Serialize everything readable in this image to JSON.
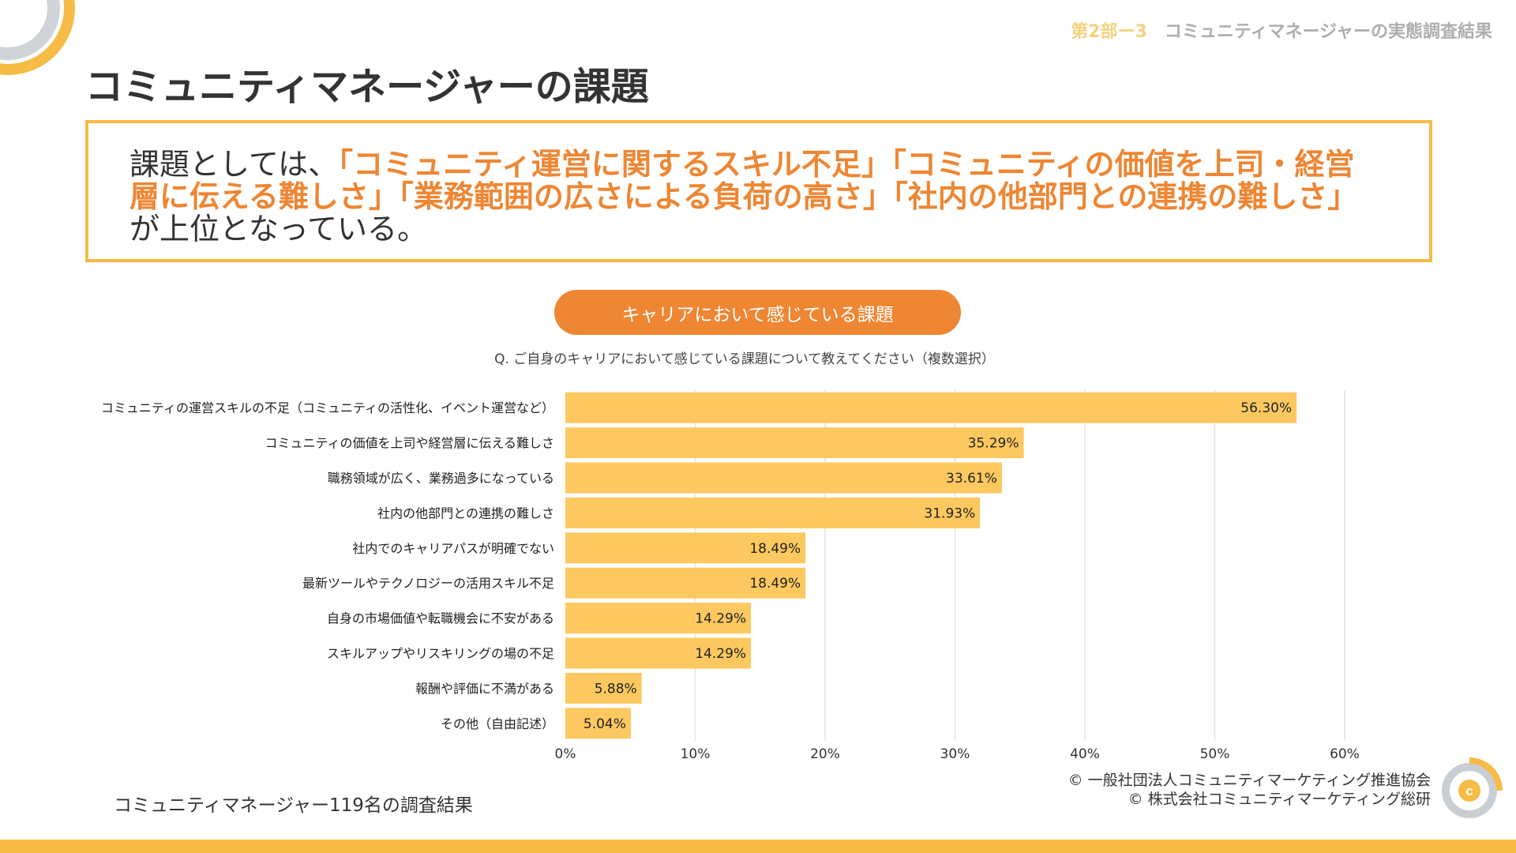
{
  "header": {
    "section": "第2部ー3",
    "section_title": "コミュニティマネージャーの実態調査結果"
  },
  "page_title": "コミュニティマネージャーの課題",
  "summary": {
    "intro": "課題としては、",
    "highlight": "「コミュニティ運営に関するスキル不足」「コミュニティの価値を上司・経営層に伝える難しさ」「業務範囲の広さによる負荷の高さ」「社内の他部門との連携の難しさ」",
    "outro": "が上位となっている。"
  },
  "chart_title": "キャリアにおいて感じている課題",
  "question": "Q. ご自身のキャリアにおいて感じている課題について教えてください（複数選択）",
  "colors": {
    "bar": "#FDC85F",
    "accent": "#EE8633",
    "border": "#F5BB45",
    "grid": "#E3E3E3"
  },
  "chart_data": {
    "type": "bar",
    "orientation": "horizontal",
    "categories": [
      "コミュニティの運営スキルの不足（コミュニティの活性化、イベント運営など）",
      "コミュニティの価値を上司や経営層に伝える難しさ",
      "職務領域が広く、業務過多になっている",
      "社内の他部門との連携の難しさ",
      "社内でのキャリアパスが明確でない",
      "最新ツールやテクノロジーの活用スキル不足",
      "自身の市場価値や転職機会に不安がある",
      "スキルアップやリスキリングの場の不足",
      "報酬や評価に不満がある",
      "その他（自由記述）"
    ],
    "values": [
      56.3,
      35.29,
      33.61,
      31.93,
      18.49,
      18.49,
      14.29,
      14.29,
      5.88,
      5.04
    ],
    "value_labels": [
      "56.30%",
      "35.29%",
      "33.61%",
      "31.93%",
      "18.49%",
      "18.49%",
      "14.29%",
      "14.29%",
      "5.88%",
      "5.04%"
    ],
    "xlim": [
      0,
      60
    ],
    "xticks": [
      "0%",
      "10%",
      "20%",
      "30%",
      "40%",
      "50%",
      "60%"
    ],
    "grid": true
  },
  "footer": {
    "sample": "コミュニティマネージャー119名の調査結果",
    "copyright1": "© 一般社団法人コミュニティマーケティング推進協会",
    "copyright2": "© 株式会社コミュニティマーケティング総研"
  }
}
